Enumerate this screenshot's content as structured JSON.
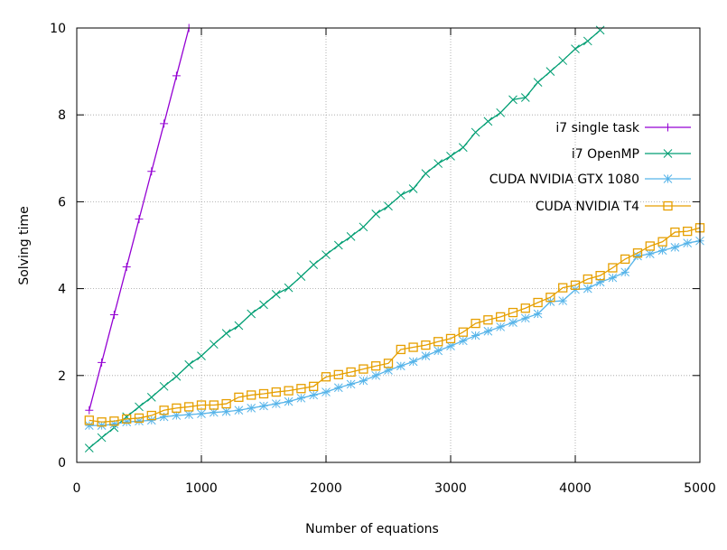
{
  "chart_data": {
    "type": "line",
    "title": "",
    "xlabel": "Number of equations",
    "ylabel": "Solving time",
    "xlim": [
      0,
      5000
    ],
    "ylim": [
      0,
      10
    ],
    "xticks": [
      "0",
      "1000",
      "2000",
      "3000",
      "4000",
      "5000"
    ],
    "yticks": [
      "0",
      "2",
      "4",
      "6",
      "8",
      "10"
    ],
    "grid": true,
    "legend_position": "top-right",
    "series": [
      {
        "name": "i7 single task",
        "color": "#9400d3",
        "marker": "plus",
        "x_start": 100,
        "x_step": 100,
        "values": [
          1.2,
          2.3,
          3.4,
          4.5,
          5.6,
          6.7,
          7.8,
          8.9,
          10.0
        ]
      },
      {
        "name": "i7 OpenMP",
        "color": "#009e73",
        "marker": "cross",
        "x_start": 100,
        "x_step": 100,
        "values": [
          0.33,
          0.57,
          0.8,
          1.05,
          1.28,
          1.5,
          1.75,
          1.98,
          2.25,
          2.45,
          2.72,
          2.97,
          3.15,
          3.42,
          3.63,
          3.87,
          4.02,
          4.28,
          4.55,
          4.78,
          5.0,
          5.2,
          5.42,
          5.72,
          5.9,
          6.15,
          6.3,
          6.65,
          6.88,
          7.05,
          7.25,
          7.6,
          7.85,
          8.05,
          8.35,
          8.4,
          8.75,
          9.0,
          9.25,
          9.52,
          9.7,
          9.95
        ]
      },
      {
        "name": "CUDA NVIDIA GTX 1080",
        "color": "#56b4e9",
        "marker": "star",
        "x_start": 100,
        "x_step": 100,
        "values": [
          0.85,
          0.85,
          0.88,
          0.93,
          0.95,
          0.97,
          1.05,
          1.08,
          1.1,
          1.12,
          1.15,
          1.17,
          1.2,
          1.25,
          1.3,
          1.35,
          1.4,
          1.48,
          1.55,
          1.62,
          1.72,
          1.8,
          1.88,
          2.0,
          2.12,
          2.22,
          2.32,
          2.45,
          2.57,
          2.68,
          2.8,
          2.92,
          3.02,
          3.12,
          3.22,
          3.32,
          3.42,
          3.7,
          3.72,
          3.98,
          4.0,
          4.15,
          4.25,
          4.38,
          4.75,
          4.8,
          4.88,
          4.95,
          5.05,
          5.1
        ]
      },
      {
        "name": "CUDA NVIDIA T4",
        "color": "#e69f00",
        "marker": "square",
        "x_start": 100,
        "x_step": 100,
        "values": [
          0.97,
          0.93,
          0.95,
          1.0,
          1.02,
          1.08,
          1.2,
          1.25,
          1.28,
          1.32,
          1.32,
          1.35,
          1.5,
          1.55,
          1.58,
          1.62,
          1.65,
          1.7,
          1.75,
          1.97,
          2.02,
          2.08,
          2.15,
          2.22,
          2.28,
          2.6,
          2.65,
          2.7,
          2.78,
          2.85,
          3.0,
          3.2,
          3.28,
          3.35,
          3.45,
          3.55,
          3.68,
          3.8,
          4.02,
          4.08,
          4.22,
          4.3,
          4.48,
          4.68,
          4.82,
          4.98,
          5.08,
          5.3,
          5.32,
          5.4
        ]
      }
    ]
  }
}
